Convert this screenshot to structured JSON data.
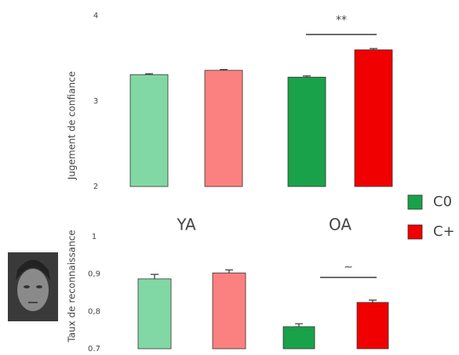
{
  "chart_data": [
    {
      "type": "bar",
      "y_label": "Jugement  de confiance",
      "categories": [
        "YA",
        "OA"
      ],
      "ylim": [
        2,
        4
      ],
      "yticks": [
        2,
        3,
        4
      ],
      "annotation": "**",
      "series": [
        {
          "name": "C0",
          "color": "#19a24a",
          "colors": [
            "#82d8a4",
            "#19a24a"
          ],
          "values": [
            3.31,
            3.28
          ],
          "errors": [
            0.01,
            0.015
          ]
        },
        {
          "name": "C+",
          "color": "#f00000",
          "colors": [
            "#fb8080",
            "#f00000"
          ],
          "values": [
            3.36,
            3.6
          ],
          "errors": [
            0.01,
            0.015
          ]
        }
      ]
    },
    {
      "type": "bar",
      "y_label": "Taux de reconnaissance",
      "categories": [
        null,
        null
      ],
      "ylim": [
        0.7,
        1
      ],
      "yticks": [
        {
          "value": 0.7,
          "label": "0.7"
        },
        {
          "value": 0.8,
          "label": "0,8"
        },
        {
          "value": 0.9,
          "label": "0,9"
        },
        1
      ],
      "annotation": "∼",
      "series": [
        {
          "color": "#19a24a",
          "colors": [
            "#82d8a4",
            "#19a24a"
          ],
          "values": [
            0.887,
            0.759
          ],
          "errors": [
            0.012,
            0.008
          ]
        },
        {
          "color": "#f00000",
          "colors": [
            "#fb8080",
            "#f00000"
          ],
          "values": [
            0.903,
            0.824
          ],
          "errors": [
            0.008,
            0.006
          ]
        }
      ]
    }
  ]
}
